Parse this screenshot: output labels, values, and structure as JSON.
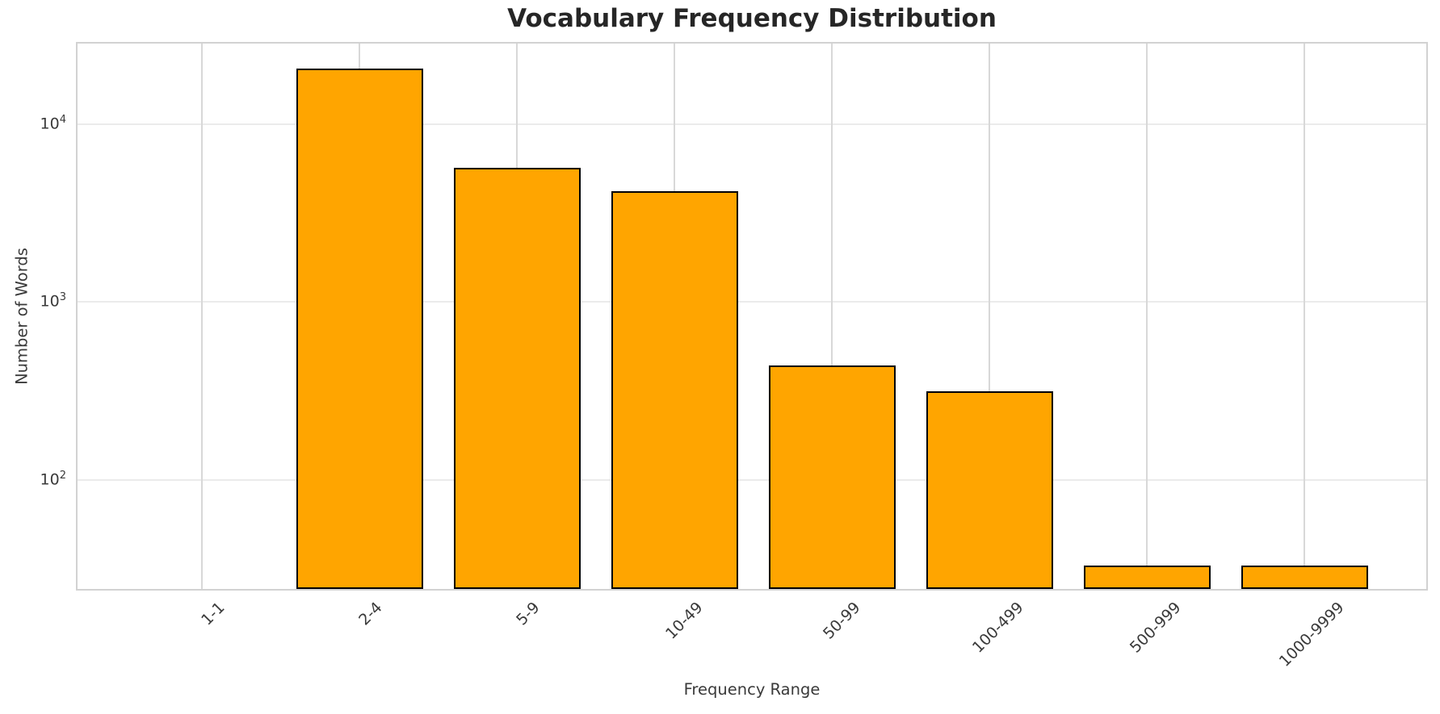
{
  "chart_data": {
    "type": "bar",
    "title": "Vocabulary Frequency Distribution",
    "xlabel": "Frequency Range",
    "ylabel": "Number of Words",
    "categories": [
      "1-1",
      "2-4",
      "5-9",
      "10-49",
      "50-99",
      "100-499",
      "500-999",
      "1000-9999"
    ],
    "values": [
      0,
      20500,
      5700,
      4200,
      440,
      315,
      33,
      33
    ],
    "yscale": "log",
    "ylim": [
      23.4,
      28400
    ],
    "yticks": [
      100,
      1000,
      10000
    ],
    "grid": "on",
    "legend": "none",
    "bar_color": "#FFA500",
    "bar_edge_color": "#000000"
  }
}
